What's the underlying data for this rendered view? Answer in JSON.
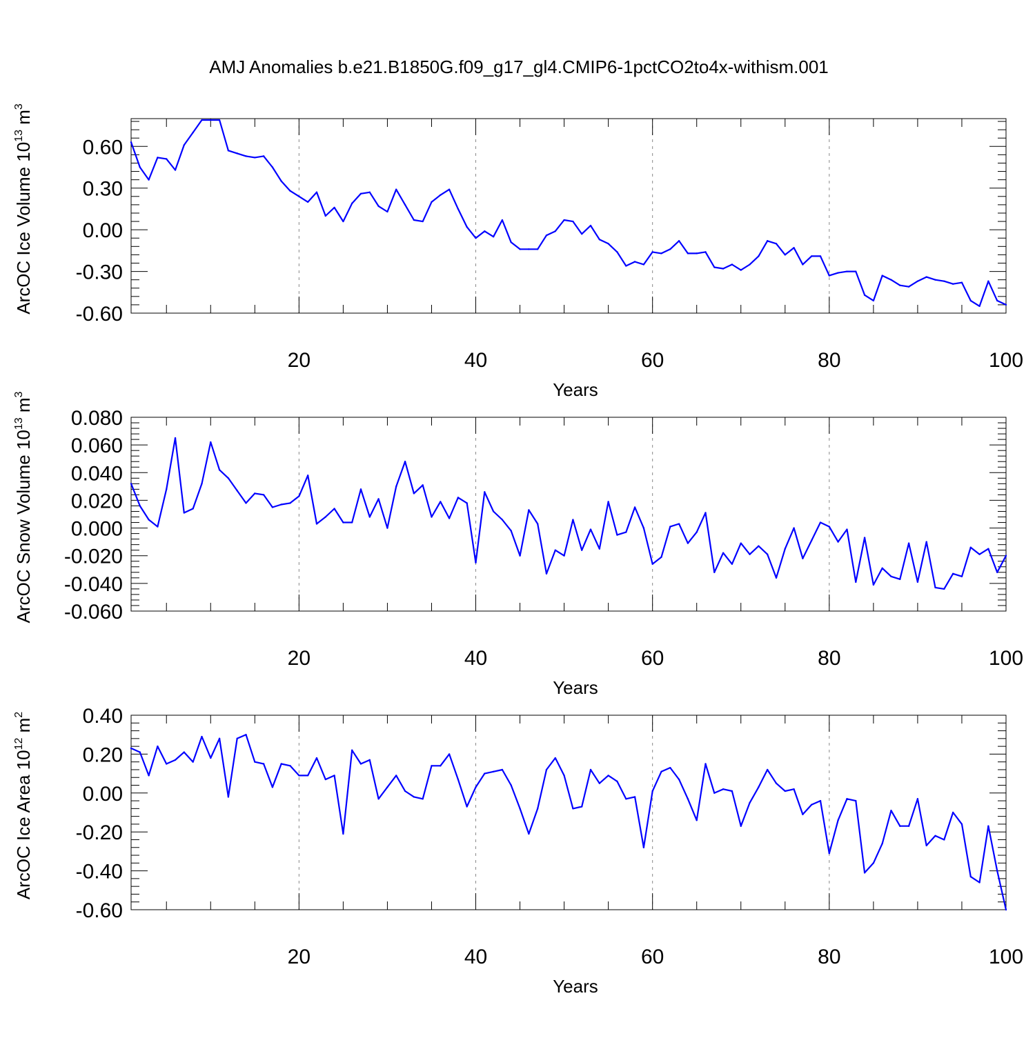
{
  "chart_data": {
    "title": "AMJ Anomalies b.e21.B1850G.f09_g17_gl4.CMIP6-1pctCO2to4x-withism.001",
    "type": "line",
    "x": [
      1,
      2,
      3,
      4,
      5,
      6,
      7,
      8,
      9,
      10,
      11,
      12,
      13,
      14,
      15,
      16,
      17,
      18,
      19,
      20,
      21,
      22,
      23,
      24,
      25,
      26,
      27,
      28,
      29,
      30,
      31,
      32,
      33,
      34,
      35,
      36,
      37,
      38,
      39,
      40,
      41,
      42,
      43,
      44,
      45,
      46,
      47,
      48,
      49,
      50,
      51,
      52,
      53,
      54,
      55,
      56,
      57,
      58,
      59,
      60,
      61,
      62,
      63,
      64,
      65,
      66,
      67,
      68,
      69,
      70,
      71,
      72,
      73,
      74,
      75,
      76,
      77,
      78,
      79,
      80,
      81,
      82,
      83,
      84,
      85,
      86,
      87,
      88,
      89,
      90,
      91,
      92,
      93,
      94,
      95,
      96,
      97,
      98,
      99,
      100
    ],
    "series_color": "#0000ff",
    "panels": [
      {
        "name": "ice-volume",
        "ylabel": "ArcOC Ice Volume 10",
        "yexp": "13",
        "yunit": "m",
        "yunit_exp": "3",
        "xlabel": "Years",
        "xlim": [
          1,
          100
        ],
        "ylim": [
          -0.6,
          0.8
        ],
        "yticks": [
          -0.6,
          -0.3,
          0.0,
          0.3,
          0.6
        ],
        "yticklabels": [
          "-0.60",
          "-0.30",
          "0.00",
          "0.30",
          "0.60"
        ],
        "xticks": [
          20,
          40,
          60,
          80,
          100
        ],
        "xticklabels": [
          "20",
          "40",
          "60",
          "80",
          "100"
        ],
        "values": [
          0.63,
          0.45,
          0.36,
          0.52,
          0.51,
          0.43,
          0.61,
          0.7,
          0.79,
          0.79,
          0.79,
          0.57,
          0.55,
          0.53,
          0.52,
          0.53,
          0.45,
          0.35,
          0.28,
          0.24,
          0.2,
          0.27,
          0.1,
          0.16,
          0.06,
          0.19,
          0.26,
          0.27,
          0.17,
          0.13,
          0.29,
          0.18,
          0.07,
          0.06,
          0.2,
          0.25,
          0.29,
          0.15,
          0.02,
          -0.06,
          -0.01,
          -0.05,
          0.07,
          -0.09,
          -0.14,
          -0.14,
          -0.14,
          -0.04,
          -0.01,
          0.07,
          0.06,
          -0.03,
          0.03,
          -0.07,
          -0.1,
          -0.16,
          -0.26,
          -0.23,
          -0.25,
          -0.16,
          -0.17,
          -0.14,
          -0.08,
          -0.17,
          -0.17,
          -0.16,
          -0.27,
          -0.28,
          -0.25,
          -0.29,
          -0.25,
          -0.19,
          -0.08,
          -0.1,
          -0.18,
          -0.13,
          -0.25,
          -0.19,
          -0.19,
          -0.33,
          -0.31,
          -0.3,
          -0.3,
          -0.47,
          -0.51,
          -0.33,
          -0.36,
          -0.4,
          -0.41,
          -0.37,
          -0.34,
          -0.36,
          -0.37,
          -0.39,
          -0.38,
          -0.51,
          -0.55,
          -0.37,
          -0.51,
          -0.54
        ]
      },
      {
        "name": "snow-volume",
        "ylabel": "ArcOC Snow Volume 10",
        "yexp": "13",
        "yunit": "m",
        "yunit_exp": "3",
        "xlabel": "Years",
        "xlim": [
          1,
          100
        ],
        "ylim": [
          -0.06,
          0.08
        ],
        "yticks": [
          -0.06,
          -0.04,
          -0.02,
          0.0,
          0.02,
          0.04,
          0.06,
          0.08
        ],
        "yticklabels": [
          "-0.060",
          "-0.040",
          "-0.020",
          "0.000",
          "0.020",
          "0.040",
          "0.060",
          "0.080"
        ],
        "xticks": [
          20,
          40,
          60,
          80,
          100
        ],
        "xticklabels": [
          "20",
          "40",
          "60",
          "80",
          "100"
        ],
        "values": [
          0.032,
          0.016,
          0.006,
          0.001,
          0.028,
          0.065,
          0.011,
          0.014,
          0.032,
          0.062,
          0.042,
          0.036,
          0.027,
          0.018,
          0.025,
          0.024,
          0.015,
          0.017,
          0.018,
          0.023,
          0.038,
          0.003,
          0.008,
          0.014,
          0.004,
          0.004,
          0.028,
          0.008,
          0.021,
          0.0,
          0.03,
          0.048,
          0.025,
          0.031,
          0.008,
          0.019,
          0.007,
          0.022,
          0.018,
          -0.025,
          0.026,
          0.012,
          0.006,
          -0.002,
          -0.02,
          0.013,
          0.003,
          -0.033,
          -0.016,
          -0.02,
          0.006,
          -0.016,
          -0.001,
          -0.015,
          0.019,
          -0.005,
          -0.003,
          0.015,
          0.0,
          -0.026,
          -0.021,
          0.001,
          0.003,
          -0.011,
          -0.003,
          0.011,
          -0.032,
          -0.018,
          -0.026,
          -0.011,
          -0.019,
          -0.013,
          -0.019,
          -0.036,
          -0.015,
          0.0,
          -0.022,
          -0.009,
          0.004,
          0.001,
          -0.01,
          -0.001,
          -0.039,
          -0.007,
          -0.041,
          -0.029,
          -0.035,
          -0.037,
          -0.011,
          -0.039,
          -0.01,
          -0.043,
          -0.044,
          -0.033,
          -0.035,
          -0.014,
          -0.019,
          -0.015,
          -0.032,
          -0.02
        ]
      },
      {
        "name": "ice-area",
        "ylabel": "ArcOC Ice Area 10",
        "yexp": "12",
        "yunit": "m",
        "yunit_exp": "2",
        "xlabel": "Years",
        "xlim": [
          1,
          100
        ],
        "ylim": [
          -0.6,
          0.4
        ],
        "yticks": [
          -0.6,
          -0.4,
          -0.2,
          0.0,
          0.2,
          0.4
        ],
        "yticklabels": [
          "-0.60",
          "-0.40",
          "-0.20",
          "0.00",
          "0.20",
          "0.40"
        ],
        "xticks": [
          20,
          40,
          60,
          80,
          100
        ],
        "xticklabels": [
          "20",
          "40",
          "60",
          "80",
          "100"
        ],
        "values": [
          0.23,
          0.21,
          0.09,
          0.24,
          0.15,
          0.17,
          0.21,
          0.16,
          0.29,
          0.18,
          0.28,
          -0.02,
          0.28,
          0.3,
          0.16,
          0.15,
          0.03,
          0.15,
          0.14,
          0.09,
          0.09,
          0.18,
          0.07,
          0.09,
          -0.21,
          0.22,
          0.15,
          0.17,
          -0.03,
          0.03,
          0.09,
          0.01,
          -0.02,
          -0.03,
          0.14,
          0.14,
          0.2,
          0.07,
          -0.07,
          0.03,
          0.1,
          0.11,
          0.12,
          0.04,
          -0.08,
          -0.21,
          -0.08,
          0.12,
          0.18,
          0.09,
          -0.08,
          -0.07,
          0.12,
          0.05,
          0.09,
          0.06,
          -0.03,
          -0.02,
          -0.28,
          0.01,
          0.11,
          0.13,
          0.07,
          -0.03,
          -0.14,
          0.15,
          0.0,
          0.02,
          0.01,
          -0.17,
          -0.05,
          0.03,
          0.12,
          0.05,
          0.01,
          0.02,
          -0.11,
          -0.06,
          -0.04,
          -0.31,
          -0.14,
          -0.03,
          -0.04,
          -0.41,
          -0.36,
          -0.26,
          -0.09,
          -0.17,
          -0.17,
          -0.03,
          -0.27,
          -0.22,
          -0.24,
          -0.1,
          -0.16,
          -0.43,
          -0.46,
          -0.17,
          -0.4,
          -0.6
        ]
      }
    ]
  }
}
